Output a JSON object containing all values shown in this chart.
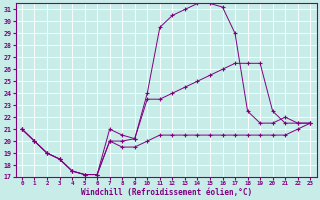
{
  "xlabel": "Windchill (Refroidissement éolien,°C)",
  "background_color": "#c8ece8",
  "line_color": "#800080",
  "xlim": [
    -0.5,
    23.5
  ],
  "ylim": [
    17,
    31.5
  ],
  "yticks": [
    17,
    18,
    19,
    20,
    21,
    22,
    23,
    24,
    25,
    26,
    27,
    28,
    29,
    30,
    31
  ],
  "xticks": [
    0,
    1,
    2,
    3,
    4,
    5,
    6,
    7,
    8,
    9,
    10,
    11,
    12,
    13,
    14,
    15,
    16,
    17,
    18,
    19,
    20,
    21,
    22,
    23
  ],
  "line1_x": [
    0,
    1,
    2,
    3,
    4,
    5,
    6,
    7,
    8,
    9,
    10,
    11,
    12,
    13,
    14,
    15,
    16,
    17,
    18,
    19,
    20,
    21,
    22,
    23
  ],
  "line1_y": [
    21,
    20,
    19,
    18.5,
    17.5,
    17.2,
    17.2,
    20.0,
    20.0,
    20.2,
    24.0,
    29.5,
    30.5,
    31.0,
    31.5,
    31.5,
    31.2,
    29.0,
    22.5,
    21.5,
    21.5,
    22.0,
    21.5,
    21.5
  ],
  "line2_x": [
    0,
    1,
    2,
    3,
    4,
    5,
    6,
    7,
    8,
    9,
    10,
    11,
    12,
    13,
    14,
    15,
    16,
    17,
    18,
    19,
    20,
    21,
    22,
    23
  ],
  "line2_y": [
    21,
    20,
    19,
    18.5,
    17.5,
    17.2,
    17.2,
    21.0,
    20.5,
    20.2,
    23.5,
    23.5,
    24.0,
    24.5,
    25.0,
    25.5,
    26.0,
    26.5,
    26.5,
    26.5,
    22.5,
    21.5,
    21.5,
    21.5
  ],
  "line3_x": [
    0,
    1,
    2,
    3,
    4,
    5,
    6,
    7,
    8,
    9,
    10,
    11,
    12,
    13,
    14,
    15,
    16,
    17,
    18,
    19,
    20,
    21,
    22,
    23
  ],
  "line3_y": [
    21,
    20,
    19,
    18.5,
    17.5,
    17.2,
    17.2,
    20.0,
    19.5,
    19.5,
    20.0,
    20.5,
    20.5,
    20.5,
    20.5,
    20.5,
    20.5,
    20.5,
    20.5,
    20.5,
    20.5,
    20.5,
    21.0,
    21.5
  ]
}
